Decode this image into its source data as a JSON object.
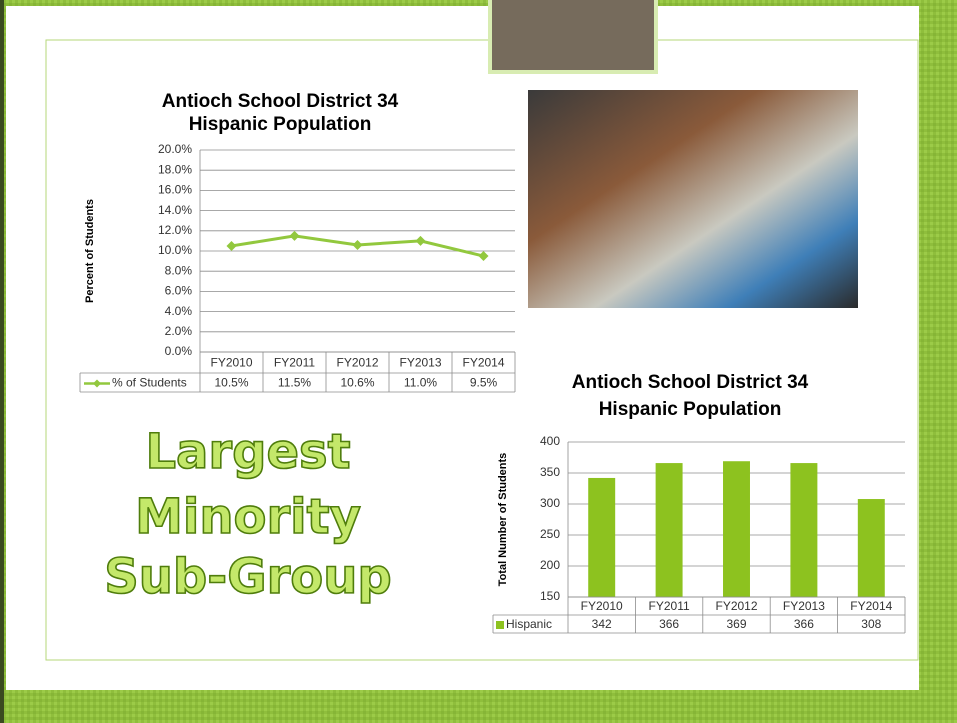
{
  "slide": {
    "heading": [
      "Largest",
      "Minority",
      "Sub-Group"
    ]
  },
  "chart_data": [
    {
      "type": "line",
      "title": [
        "Antioch School District 34",
        "Hispanic Population"
      ],
      "y_label": "Percent of Students",
      "categories": [
        "FY2010",
        "FY2011",
        "FY2012",
        "FY2013",
        "FY2014"
      ],
      "series": [
        {
          "name": "% of Students",
          "color": "#92c83e",
          "values": [
            10.5,
            11.5,
            10.6,
            11.0,
            9.5
          ],
          "value_labels": [
            "10.5%",
            "11.5%",
            "10.6%",
            "11.0%",
            "9.5%"
          ]
        }
      ],
      "ylim": [
        0,
        20
      ],
      "yticks": [
        {
          "value": 0,
          "label": "0.0%"
        },
        {
          "value": 2,
          "label": "2.0%"
        },
        {
          "value": 4,
          "label": "4.0%"
        },
        {
          "value": 6,
          "label": "6.0%"
        },
        {
          "value": 8,
          "label": "8.0%"
        },
        {
          "value": 10,
          "label": "10.0%"
        },
        {
          "value": 12,
          "label": "12.0%"
        },
        {
          "value": 14,
          "label": "14.0%"
        },
        {
          "value": 16,
          "label": "16.0%"
        },
        {
          "value": 18,
          "label": "18.0%"
        },
        {
          "value": 20,
          "label": "20.0%"
        }
      ],
      "grid": true,
      "data_table": true
    },
    {
      "type": "bar",
      "title": [
        "Antioch School District 34",
        "Hispanic Population"
      ],
      "y_label": "Total Number of Students",
      "categories": [
        "FY2010",
        "FY2011",
        "FY2012",
        "FY2013",
        "FY2014"
      ],
      "series": [
        {
          "name": "Hispanic",
          "color": "#8dc21f",
          "values": [
            342,
            366,
            369,
            366,
            308
          ]
        }
      ],
      "ylim": [
        150,
        400
      ],
      "yticks": [
        150,
        200,
        250,
        300,
        350,
        400
      ],
      "grid": true,
      "data_table": true
    }
  ]
}
